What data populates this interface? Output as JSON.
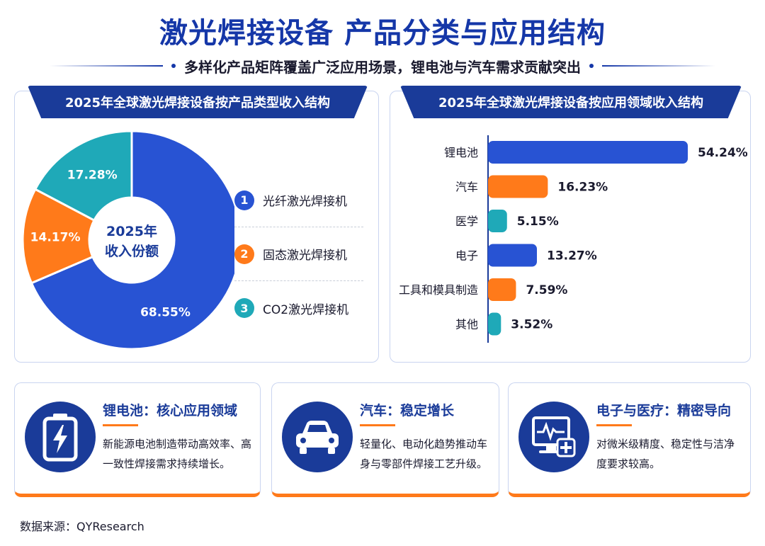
{
  "title": "激光焊接设备 产品分类与应用结构",
  "subtitle": "多样化产品矩阵覆盖广泛应用场景，锂电池与汽车需求贡献突出",
  "colors": {
    "blue": "#2853d3",
    "orange": "#ff7a1a",
    "teal": "#1fa9b8",
    "navy": "#1a3b99"
  },
  "chart_data": [
    {
      "type": "pie",
      "title": "2025年全球激光焊接设备按产品类型收入结构",
      "center_label": [
        "2025年",
        "收入份额"
      ],
      "categories": [
        "光纤激光焊接机",
        "固态激光焊接机",
        "CO2激光焊接机"
      ],
      "values": [
        68.55,
        14.17,
        17.28
      ],
      "value_labels": [
        "68.55%",
        "14.17%",
        "17.28%"
      ],
      "legend_numbers": [
        "1",
        "2",
        "3"
      ],
      "colors": [
        "#2853d3",
        "#ff7a1a",
        "#1fa9b8"
      ]
    },
    {
      "type": "bar",
      "title": "2025年全球激光焊接设备按应用领域收入结构",
      "categories": [
        "锂电池",
        "汽车",
        "医学",
        "电子",
        "工具和模具制造",
        "其他"
      ],
      "values": [
        54.24,
        16.23,
        5.15,
        13.27,
        7.59,
        3.52
      ],
      "value_labels": [
        "54.24%",
        "16.23%",
        "5.15%",
        "13.27%",
        "7.59%",
        "3.52%"
      ],
      "colors": [
        "#2853d3",
        "#ff7a1a",
        "#1fa9b8",
        "#2853d3",
        "#ff7a1a",
        "#1fa9b8"
      ]
    }
  ],
  "cards": [
    {
      "title": "锂电池：核心应用领域",
      "text": "新能源电池制造带动高效率、高一致性焊接需求持续增长。",
      "icon": "battery-icon"
    },
    {
      "title": "汽车：稳定增长",
      "text": "轻量化、电动化趋势推动车身与零部件焊接工艺升级。",
      "icon": "car-icon"
    },
    {
      "title": "电子与医疗：精密导向",
      "text": "对微米级精度、稳定性与洁净度要求较高。",
      "icon": "medical-monitor-icon"
    }
  ],
  "source": "数据来源：QYResearch"
}
